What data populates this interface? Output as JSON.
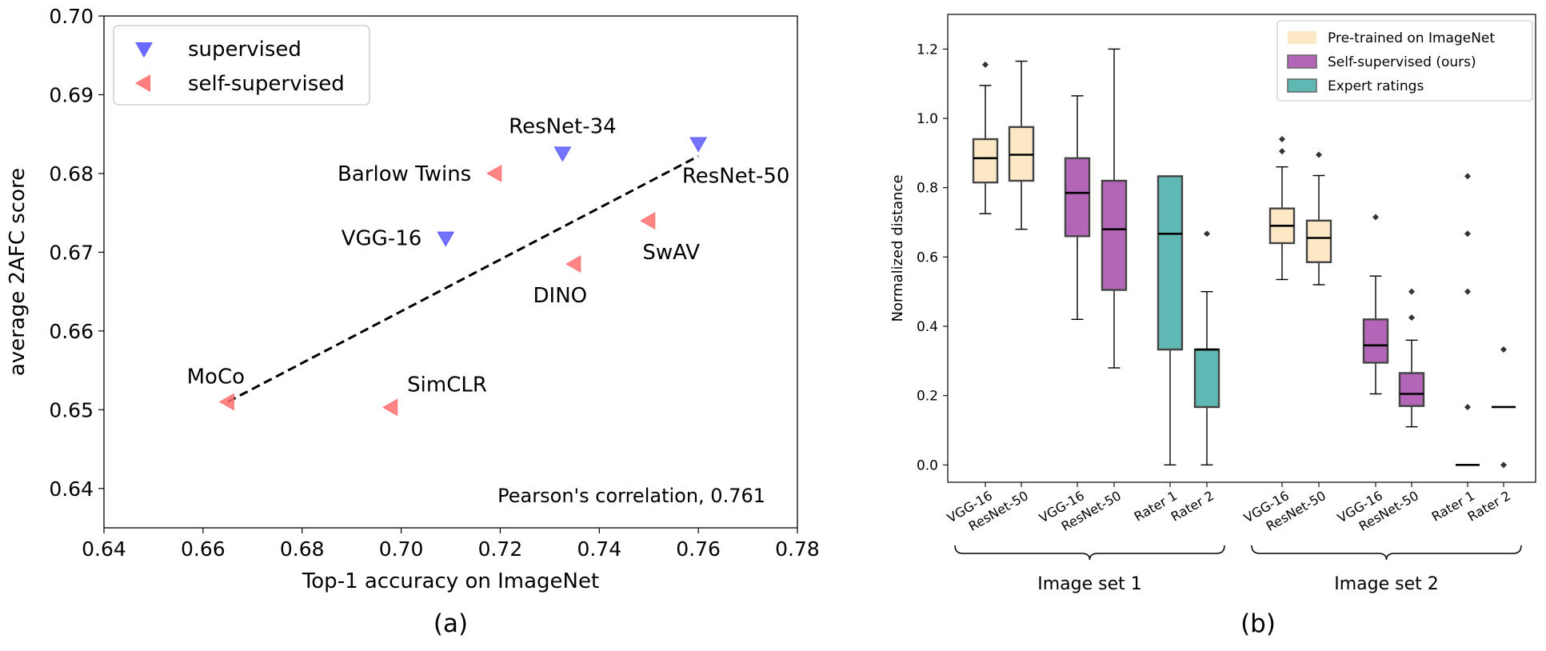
{
  "chart_data": [
    {
      "type": "scatter",
      "panel_label": "(a)",
      "xlabel": "Top-1 accuracy on ImageNet",
      "ylabel": "average 2AFC score",
      "xlim": [
        0.64,
        0.78
      ],
      "ylim": [
        0.635,
        0.7
      ],
      "xticks": [
        0.64,
        0.66,
        0.68,
        0.7,
        0.72,
        0.74,
        0.76,
        0.78
      ],
      "xtick_labels": [
        "0.64",
        "0.66",
        "0.68",
        "0.70",
        "0.72",
        "0.74",
        "0.76",
        "0.78"
      ],
      "yticks": [
        0.64,
        0.65,
        0.66,
        0.67,
        0.68,
        0.69,
        0.7
      ],
      "ytick_labels": [
        "0.64",
        "0.65",
        "0.66",
        "0.67",
        "0.68",
        "0.69",
        "0.70"
      ],
      "legend": [
        {
          "key": "supervised",
          "label": "supervised",
          "marker": "triangle-down",
          "color": "#5a5aff"
        },
        {
          "key": "self",
          "label": "self-supervised",
          "marker": "triangle-left",
          "color": "#ff7070"
        }
      ],
      "points": [
        {
          "label": "ResNet-34",
          "x": 0.7326,
          "y": 0.6826,
          "group": "supervised",
          "label_pos": "above"
        },
        {
          "label": "ResNet-50",
          "x": 0.76,
          "y": 0.6838,
          "group": "supervised",
          "label_pos": "below-right"
        },
        {
          "label": "VGG-16",
          "x": 0.709,
          "y": 0.6718,
          "group": "supervised",
          "label_pos": "left"
        },
        {
          "label": "Barlow Twins",
          "x": 0.719,
          "y": 0.68,
          "group": "self",
          "label_pos": "left"
        },
        {
          "label": "SwAV",
          "x": 0.75,
          "y": 0.674,
          "group": "self",
          "label_pos": "below"
        },
        {
          "label": "DINO",
          "x": 0.735,
          "y": 0.6685,
          "group": "self",
          "label_pos": "below"
        },
        {
          "label": "MoCo",
          "x": 0.665,
          "y": 0.651,
          "group": "self",
          "label_pos": "above-left"
        },
        {
          "label": "SimCLR",
          "x": 0.698,
          "y": 0.6503,
          "group": "self",
          "label_pos": "above-right"
        }
      ],
      "fit_line": {
        "x": [
          0.665,
          0.76
        ],
        "y": [
          0.651,
          0.6822
        ]
      },
      "annotation": "Pearson's correlation, 0.761"
    },
    {
      "type": "boxplot",
      "panel_label": "(b)",
      "ylabel": "Normalized distance",
      "ylim": [
        -0.05,
        1.3
      ],
      "yticks": [
        0.0,
        0.2,
        0.4,
        0.6,
        0.8,
        1.0,
        1.2
      ],
      "ytick_labels": [
        "0.0",
        "0.2",
        "0.4",
        "0.6",
        "0.8",
        "1.0",
        "1.2"
      ],
      "legend": [
        {
          "key": "pretrained",
          "label": "Pre-trained on ImageNet",
          "color": "#fde8c6"
        },
        {
          "key": "selfsup",
          "label": "Self-supervised (ours)",
          "color": "#b366b8"
        },
        {
          "key": "expert",
          "label": "Expert ratings",
          "color": "#5fb8b3"
        }
      ],
      "groups": [
        {
          "label": "Image set 1",
          "first": 0,
          "last": 5
        },
        {
          "label": "Image set 2",
          "first": 6,
          "last": 11
        }
      ],
      "boxes": [
        {
          "label": "VGG-16",
          "type": "pretrained",
          "whislo": 0.725,
          "q1": 0.815,
          "med": 0.885,
          "q3": 0.94,
          "whishi": 1.095,
          "fliers": [
            1.155
          ]
        },
        {
          "label": "ResNet-50",
          "type": "pretrained",
          "whislo": 0.68,
          "q1": 0.82,
          "med": 0.895,
          "q3": 0.975,
          "whishi": 1.165,
          "fliers": []
        },
        {
          "label": "VGG-16",
          "type": "selfsup",
          "whislo": 0.42,
          "q1": 0.66,
          "med": 0.785,
          "q3": 0.885,
          "whishi": 1.065,
          "fliers": []
        },
        {
          "label": "ResNet-50",
          "type": "selfsup",
          "whislo": 0.28,
          "q1": 0.505,
          "med": 0.68,
          "q3": 0.82,
          "whishi": 1.2,
          "fliers": []
        },
        {
          "label": "Rater 1",
          "type": "expert",
          "whislo": 0.0,
          "q1": 0.333,
          "med": 0.667,
          "q3": 0.833,
          "whishi": 0.833,
          "fliers": []
        },
        {
          "label": "Rater 2",
          "type": "expert",
          "whislo": 0.0,
          "q1": 0.167,
          "med": 0.333,
          "q3": 0.333,
          "whishi": 0.5,
          "fliers": [
            0.667
          ]
        },
        {
          "label": "VGG-16",
          "type": "pretrained",
          "whislo": 0.535,
          "q1": 0.64,
          "med": 0.69,
          "q3": 0.74,
          "whishi": 0.86,
          "fliers": [
            0.905,
            0.94
          ]
        },
        {
          "label": "ResNet-50",
          "type": "pretrained",
          "whislo": 0.52,
          "q1": 0.585,
          "med": 0.655,
          "q3": 0.705,
          "whishi": 0.835,
          "fliers": [
            0.895
          ]
        },
        {
          "label": "VGG-16",
          "type": "selfsup",
          "whislo": 0.205,
          "q1": 0.295,
          "med": 0.345,
          "q3": 0.42,
          "whishi": 0.545,
          "fliers": [
            0.715
          ]
        },
        {
          "label": "ResNet-50",
          "type": "selfsup",
          "whislo": 0.11,
          "q1": 0.17,
          "med": 0.205,
          "q3": 0.265,
          "whishi": 0.36,
          "fliers": [
            0.425,
            0.5
          ]
        },
        {
          "label": "Rater 1",
          "type": "expert",
          "whislo": 0.0,
          "q1": 0.0,
          "med": 0.0,
          "q3": 0.0,
          "whishi": 0.0,
          "fliers": [
            0.167,
            0.5,
            0.667,
            0.833
          ]
        },
        {
          "label": "Rater 2",
          "type": "expert",
          "whislo": 0.167,
          "q1": 0.167,
          "med": 0.167,
          "q3": 0.167,
          "whishi": 0.167,
          "fliers": [
            0.0,
            0.333
          ]
        }
      ]
    }
  ]
}
